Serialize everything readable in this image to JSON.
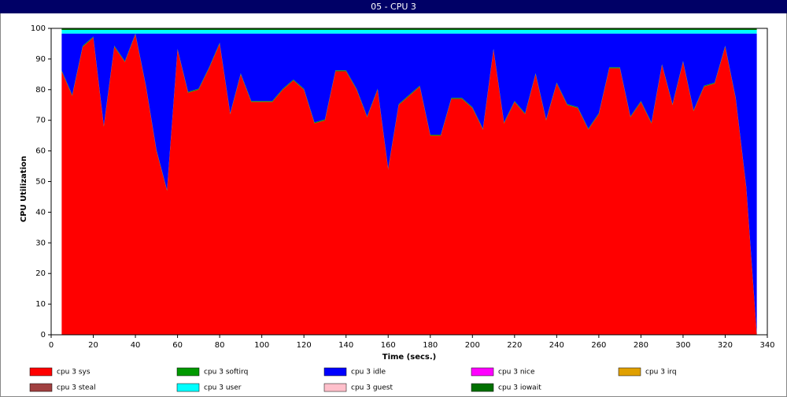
{
  "chart_data": {
    "type": "stacked-area",
    "title": "05 - CPU 3",
    "x_label": "Time (secs.)",
    "y_label": "CPU Utilization",
    "x": [
      5,
      10,
      15,
      20,
      25,
      30,
      35,
      40,
      45,
      50,
      55,
      60,
      65,
      70,
      75,
      80,
      85,
      90,
      95,
      100,
      105,
      110,
      115,
      120,
      125,
      130,
      135,
      140,
      145,
      150,
      155,
      160,
      165,
      170,
      175,
      180,
      185,
      190,
      195,
      200,
      205,
      210,
      215,
      220,
      225,
      230,
      235,
      240,
      245,
      250,
      255,
      260,
      265,
      270,
      275,
      280,
      285,
      290,
      295,
      300,
      305,
      310,
      315,
      320,
      325,
      330,
      335
    ],
    "series": [
      {
        "name": "cpu 3 sys",
        "color": "#ff0000",
        "values": [
          86,
          78,
          94,
          97,
          68,
          94,
          89,
          98,
          81,
          60,
          47,
          93,
          79,
          80,
          87,
          95,
          72,
          85,
          76,
          76,
          76,
          80,
          83,
          80,
          69,
          70,
          86,
          86,
          80,
          71,
          80,
          54,
          75,
          78,
          81,
          65,
          65,
          77,
          77,
          74,
          67,
          93,
          69,
          76,
          72,
          85,
          70,
          82,
          75,
          74,
          67,
          72,
          87,
          87,
          71,
          76,
          69,
          88,
          75,
          89,
          73,
          81,
          82,
          94,
          77,
          48,
          0
        ]
      },
      {
        "name": "cpu 3 softirq",
        "color": "#009900",
        "values": [
          0.3,
          0.3,
          0.3,
          0.3,
          0.3,
          0.3,
          0.3,
          0.3,
          0.3,
          0.3,
          0.3,
          0.3,
          0.3,
          0.3,
          0.3,
          0.3,
          0.3,
          0.3,
          0.3,
          0.3,
          0.3,
          0.3,
          0.3,
          0.3,
          0.3,
          0.3,
          0.3,
          0.3,
          0.3,
          0.3,
          0.3,
          0.3,
          0.3,
          0.3,
          0.3,
          0.3,
          0.3,
          0.3,
          0.3,
          0.3,
          0.3,
          0.3,
          0.3,
          0.3,
          0.3,
          0.3,
          0.3,
          0.3,
          0.3,
          0.3,
          0.3,
          0.3,
          0.3,
          0.3,
          0.3,
          0.3,
          0.3,
          0.3,
          0.3,
          0.3,
          0.3,
          0.3,
          0.3,
          0.3,
          0.3,
          0.3,
          0.3
        ]
      },
      {
        "name": "cpu 3 idle",
        "color": "#0000ff",
        "values": [
          12,
          20,
          4,
          1,
          30,
          4,
          9,
          0,
          17,
          38,
          51,
          5,
          19,
          18,
          11,
          3,
          26,
          13,
          22,
          22,
          22,
          18,
          15,
          18,
          29,
          28,
          12,
          12,
          18,
          27,
          18,
          44,
          23,
          20,
          17,
          33,
          33,
          21,
          21,
          24,
          31,
          5,
          29,
          22,
          26,
          13,
          28,
          16,
          23,
          24,
          31,
          26,
          11,
          11,
          27,
          22,
          29,
          10,
          23,
          9,
          25,
          17,
          16,
          4,
          21,
          50,
          98
        ]
      },
      {
        "name": "cpu 3 nice",
        "color": "#ff00ff",
        "values": [
          0,
          0,
          0,
          0,
          0,
          0,
          0,
          0,
          0,
          0,
          0,
          0,
          0,
          0,
          0,
          0,
          0,
          0,
          0,
          0,
          0,
          0,
          0,
          0,
          0,
          0,
          0,
          0,
          0,
          0,
          0,
          0,
          0,
          0,
          0,
          0,
          0,
          0,
          0,
          0,
          0,
          0,
          0,
          0,
          0,
          0,
          0,
          0,
          0,
          0,
          0,
          0,
          0,
          0,
          0,
          0,
          0,
          0,
          0,
          0,
          0,
          0,
          0,
          0,
          0,
          0,
          0
        ]
      },
      {
        "name": "cpu 3 irq",
        "color": "#e0a000",
        "values": [
          0,
          0,
          0,
          0,
          0,
          0,
          0,
          0,
          0,
          0,
          0,
          0,
          0,
          0,
          0,
          0,
          0,
          0,
          0,
          0,
          0,
          0,
          0,
          0,
          0,
          0,
          0,
          0,
          0,
          0,
          0,
          0,
          0,
          0,
          0,
          0,
          0,
          0,
          0,
          0,
          0,
          0,
          0,
          0,
          0,
          0,
          0,
          0,
          0,
          0,
          0,
          0,
          0,
          0,
          0,
          0,
          0,
          0,
          0,
          0,
          0,
          0,
          0,
          0,
          0,
          0,
          0
        ]
      },
      {
        "name": "cpu 3 steal",
        "color": "#a04040",
        "values": [
          0,
          0,
          0,
          0,
          0,
          0,
          0,
          0,
          0,
          0,
          0,
          0,
          0,
          0,
          0,
          0,
          0,
          0,
          0,
          0,
          0,
          0,
          0,
          0,
          0,
          0,
          0,
          0,
          0,
          0,
          0,
          0,
          0,
          0,
          0,
          0,
          0,
          0,
          0,
          0,
          0,
          0,
          0,
          0,
          0,
          0,
          0,
          0,
          0,
          0,
          0,
          0,
          0,
          0,
          0,
          0,
          0,
          0,
          0,
          0,
          0,
          0,
          0,
          0,
          0,
          0,
          0
        ]
      },
      {
        "name": "cpu 3 user",
        "color": "#00ffff",
        "values": [
          1.2,
          1.2,
          1.2,
          1.2,
          1.2,
          1.2,
          1.2,
          1.2,
          1.2,
          1.2,
          1.2,
          1.2,
          1.2,
          1.2,
          1.2,
          1.2,
          1.2,
          1.2,
          1.2,
          1.2,
          1.2,
          1.2,
          1.2,
          1.2,
          1.2,
          1.2,
          1.2,
          1.2,
          1.2,
          1.2,
          1.2,
          1.2,
          1.2,
          1.2,
          1.2,
          1.2,
          1.2,
          1.2,
          1.2,
          1.2,
          1.2,
          1.2,
          1.2,
          1.2,
          1.2,
          1.2,
          1.2,
          1.2,
          1.2,
          1.2,
          1.2,
          1.2,
          1.2,
          1.2,
          1.2,
          1.2,
          1.2,
          1.2,
          1.2,
          1.2,
          1.2,
          1.2,
          1.2,
          1.2,
          1.2,
          1.2,
          1.2
        ]
      },
      {
        "name": "cpu 3 guest",
        "color": "#ffc0cb",
        "values": [
          0,
          0,
          0,
          0,
          0,
          0,
          0,
          0,
          0,
          0,
          0,
          0,
          0,
          0,
          0,
          0,
          0,
          0,
          0,
          0,
          0,
          0,
          0,
          0,
          0,
          0,
          0,
          0,
          0,
          0,
          0,
          0,
          0,
          0,
          0,
          0,
          0,
          0,
          0,
          0,
          0,
          0,
          0,
          0,
          0,
          0,
          0,
          0,
          0,
          0,
          0,
          0,
          0,
          0,
          0,
          0,
          0,
          0,
          0,
          0,
          0,
          0,
          0,
          0,
          0,
          0,
          0
        ]
      },
      {
        "name": "cpu 3 iowait",
        "color": "#007000",
        "values": [
          0.5,
          0.5,
          0.5,
          0.5,
          0.5,
          0.5,
          0.5,
          0.5,
          0.5,
          0.5,
          0.5,
          0.5,
          0.5,
          0.5,
          0.5,
          0.5,
          0.5,
          0.5,
          0.5,
          0.5,
          0.5,
          0.5,
          0.5,
          0.5,
          0.5,
          0.5,
          0.5,
          0.5,
          0.5,
          0.5,
          0.5,
          0.5,
          0.5,
          0.5,
          0.5,
          0.5,
          0.5,
          0.5,
          0.5,
          0.5,
          0.5,
          0.5,
          0.5,
          0.5,
          0.5,
          0.5,
          0.5,
          0.5,
          0.5,
          0.5,
          0.5,
          0.5,
          0.5,
          0.5,
          0.5,
          0.5,
          0.5,
          0.5,
          0.5,
          0.5,
          0.5,
          0.5,
          0.5,
          0.5,
          0.5,
          0.5,
          0.5
        ]
      }
    ],
    "xlim": [
      0,
      340
    ],
    "xticks": [
      0,
      20,
      40,
      60,
      80,
      100,
      120,
      140,
      160,
      180,
      200,
      220,
      240,
      260,
      280,
      300,
      320,
      340
    ],
    "ylim": [
      0,
      100
    ],
    "yticks": [
      0,
      10,
      20,
      30,
      40,
      50,
      60,
      70,
      80,
      90,
      100
    ]
  }
}
